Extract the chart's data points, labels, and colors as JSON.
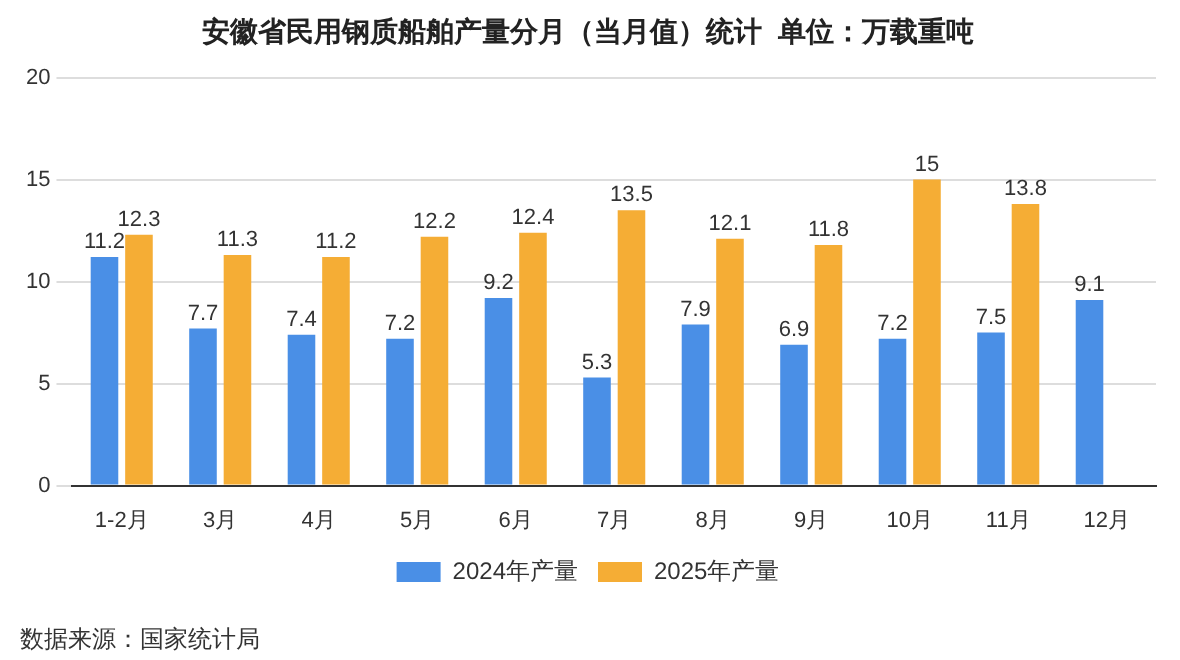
{
  "chart_data": {
    "type": "bar",
    "title": "安徽省民用钢质船舶产量分月（当月值）统计  单位：万载重吨",
    "categories": [
      "1-2月",
      "3月",
      "4月",
      "5月",
      "6月",
      "7月",
      "8月",
      "9月",
      "10月",
      "11月",
      "12月"
    ],
    "series": [
      {
        "name": "2024年产量",
        "color": "#4a8fe6",
        "values": [
          11.2,
          7.7,
          7.4,
          7.2,
          9.2,
          5.3,
          7.9,
          6.9,
          7.2,
          7.5,
          9.1
        ]
      },
      {
        "name": "2025年产量",
        "color": "#f5ad35",
        "values": [
          12.3,
          11.3,
          11.2,
          12.2,
          12.4,
          13.5,
          12.1,
          11.8,
          15,
          13.8,
          null
        ]
      }
    ],
    "ylim": [
      0,
      20
    ],
    "yticks": [
      0,
      5,
      10,
      15,
      20
    ],
    "grid": "y",
    "legend": "bottom",
    "data_labels": true,
    "annotations": [
      "数据来源：国家统计局"
    ]
  }
}
